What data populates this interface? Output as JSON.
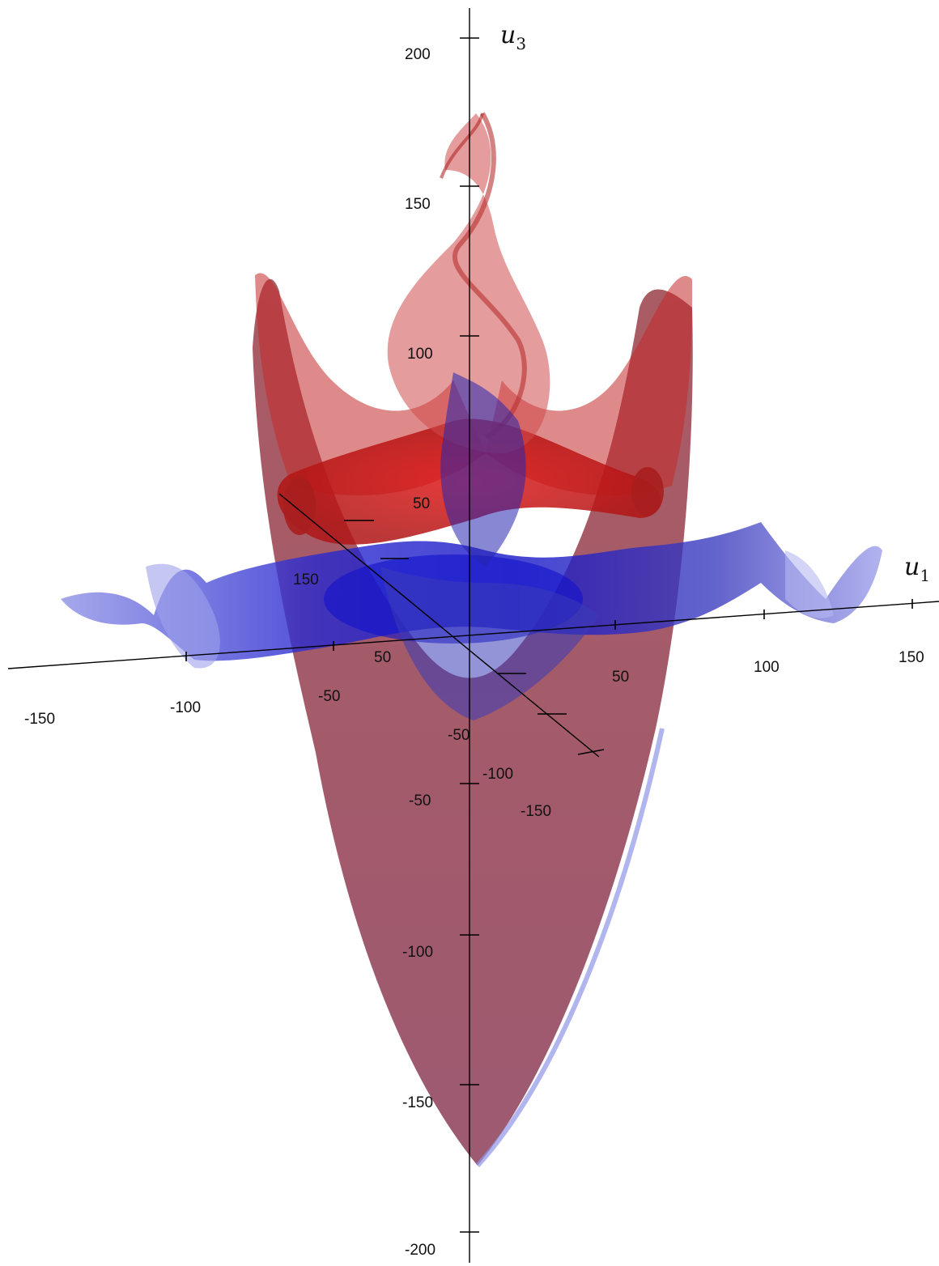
{
  "axes": {
    "u1": {
      "name": "u",
      "subscript": "1",
      "ticks": [
        "-150",
        "-100",
        "-50",
        "50",
        "100",
        "150"
      ]
    },
    "u2": {
      "ticks": [
        "150",
        "50",
        "-50",
        "-100",
        "-150"
      ]
    },
    "u3": {
      "name": "u",
      "subscript": "3",
      "ticks": [
        "200",
        "150",
        "100",
        "50",
        "-50",
        "-100",
        "-150",
        "-200"
      ]
    }
  },
  "surfaces": [
    {
      "id": "red-surface",
      "color": "#cc1010"
    },
    {
      "id": "blue-surface",
      "color": "#1010cc"
    }
  ]
}
